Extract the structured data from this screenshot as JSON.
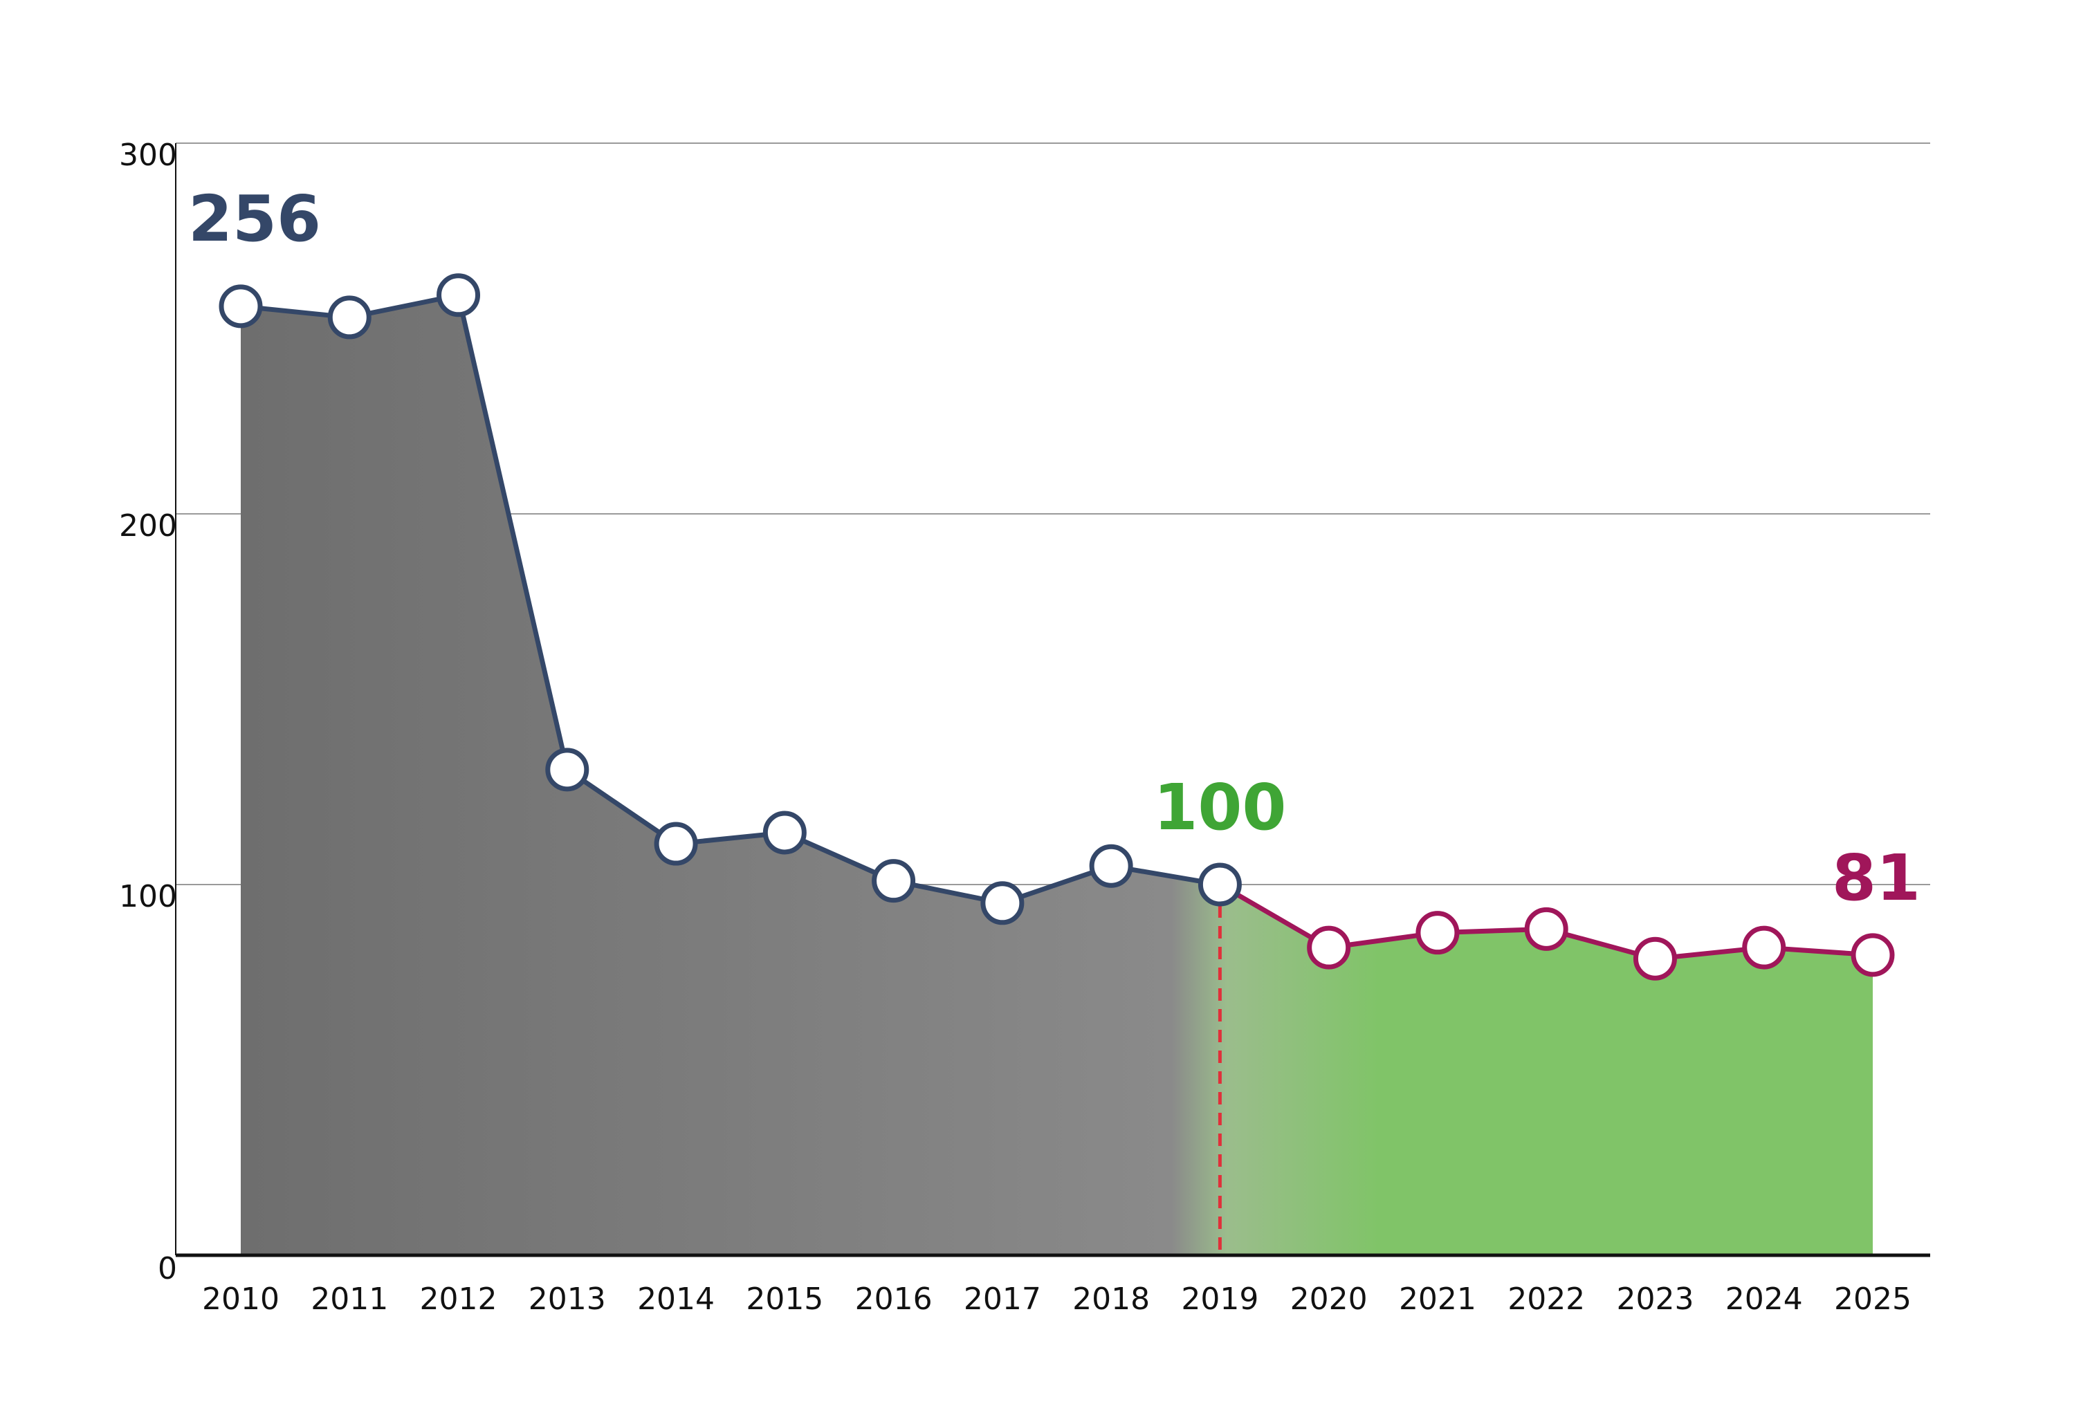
{
  "chart_data": {
    "type": "line",
    "title": "",
    "xlabel": "",
    "ylabel": "",
    "categories": [
      "2010",
      "2011",
      "2012",
      "2013",
      "2014",
      "2015",
      "2016",
      "2017",
      "2018",
      "2019",
      "2020",
      "2021",
      "2022",
      "2023",
      "2024",
      "2025"
    ],
    "series": [
      {
        "values": [
          256,
          253,
          259,
          131,
          111,
          114,
          101,
          95,
          105,
          100,
          83,
          87,
          88,
          80,
          83,
          81
        ]
      }
    ],
    "ylim": [
      0,
      300
    ],
    "yticks": [
      0,
      100,
      200,
      300
    ],
    "grid": true,
    "legend": "none",
    "annotations": [
      {
        "label": "256",
        "category": "2010"
      },
      {
        "label": "100",
        "category": "2019"
      },
      {
        "label": "81",
        "category": "2025"
      }
    ],
    "reference_line": {
      "category": "2019",
      "style": "dashed"
    },
    "split_category": "2019",
    "colors": {
      "past_line": "#344768",
      "future_line": "#a0165a",
      "past_area": "#6e6e6e",
      "future_area": "#80c468",
      "reference_line": "#e0303a",
      "label_2010": "#344768",
      "label_2019": "#3fa535",
      "label_2025": "#a0165a",
      "grid": "#9a9a9a",
      "axis": "#111111"
    }
  }
}
